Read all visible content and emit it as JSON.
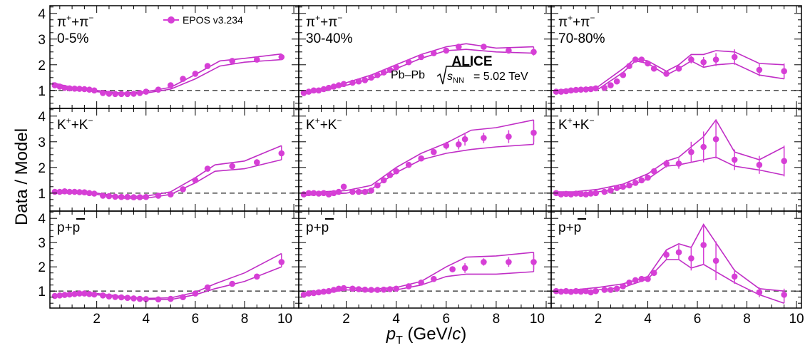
{
  "figure": {
    "ylabel": "Data / Model",
    "xlabel_main": "p",
    "xlabel_sub": "T",
    "xlabel_unit_open": " (GeV/",
    "xlabel_unit_c": "c",
    "xlabel_unit_close": ")",
    "legend_label": "EPOS v3.234",
    "experiment": "ALICE",
    "system": "Pb–Pb",
    "energy_sym": "s",
    "energy_sub": "NN",
    "energy_value": "= 5.02 TeV"
  },
  "colors": {
    "data": "#d63fd6",
    "model": "#c02ec6",
    "reference": "#555555"
  },
  "chart_data": {
    "type": "scatter",
    "grid": false,
    "xlim": [
      0.1,
      10.2
    ],
    "ylim": [
      0.3,
      4.3
    ],
    "xticks": [
      2,
      4,
      6,
      8,
      10
    ],
    "yticks": [
      1,
      2,
      3,
      4
    ],
    "reference_line": 1,
    "panels": [
      {
        "particle": [
          "π",
          "+",
          "+π",
          "−"
        ],
        "centrality": "0-5%",
        "x": [
          0.3,
          0.5,
          0.7,
          0.9,
          1.1,
          1.3,
          1.5,
          1.7,
          1.9,
          2.25,
          2.5,
          2.75,
          3.0,
          3.25,
          3.5,
          3.75,
          4.0,
          4.5,
          5.0,
          5.5,
          6.0,
          6.5,
          7.5,
          8.5,
          9.5
        ],
        "y": [
          1.2,
          1.15,
          1.1,
          1.08,
          1.07,
          1.06,
          1.05,
          1.03,
          1.0,
          0.9,
          0.87,
          0.86,
          0.86,
          0.86,
          0.87,
          0.9,
          0.95,
          1.03,
          1.2,
          1.45,
          1.65,
          1.95,
          2.15,
          2.2,
          2.3
        ],
        "err": [
          0.05,
          0.03,
          0.03,
          0.03,
          0.03,
          0.03,
          0.03,
          0.03,
          0.03,
          0.02,
          0.02,
          0.02,
          0.02,
          0.02,
          0.02,
          0.02,
          0.02,
          0.03,
          0.03,
          0.04,
          0.05,
          0.06,
          0.07,
          0.08,
          0.12
        ],
        "model_x": [
          0.2,
          1,
          2,
          3,
          4,
          5,
          6,
          7,
          8,
          9.5
        ],
        "model_lo": [
          1.15,
          1.05,
          0.95,
          0.85,
          0.9,
          1.05,
          1.45,
          1.95,
          2.1,
          2.2
        ],
        "model_hi": [
          1.3,
          1.12,
          1.0,
          0.9,
          0.95,
          1.12,
          1.62,
          2.15,
          2.25,
          2.42
        ]
      },
      {
        "particle": [
          "π",
          "+",
          "+π",
          "−"
        ],
        "centrality": "30-40%",
        "x": [
          0.3,
          0.5,
          0.7,
          0.9,
          1.1,
          1.3,
          1.5,
          1.7,
          1.9,
          2.25,
          2.5,
          2.75,
          3.0,
          3.25,
          3.5,
          3.75,
          4.0,
          4.5,
          5.0,
          5.5,
          6.0,
          6.5,
          7.5,
          8.5,
          9.5
        ],
        "y": [
          0.9,
          0.95,
          1.0,
          1.0,
          1.05,
          1.1,
          1.15,
          1.2,
          1.25,
          1.3,
          1.35,
          1.4,
          1.5,
          1.6,
          1.7,
          1.8,
          1.9,
          2.1,
          2.3,
          2.45,
          2.55,
          2.7,
          2.7,
          2.55,
          2.5
        ],
        "err": [
          0.05,
          0.05,
          0.05,
          0.05,
          0.04,
          0.04,
          0.04,
          0.04,
          0.04,
          0.04,
          0.04,
          0.04,
          0.04,
          0.04,
          0.04,
          0.04,
          0.05,
          0.05,
          0.05,
          0.06,
          0.06,
          0.07,
          0.08,
          0.1,
          0.14
        ],
        "model_x": [
          0.2,
          1,
          2,
          3,
          4,
          5,
          6,
          6.8,
          8,
          9.5
        ],
        "model_lo": [
          0.85,
          1.0,
          1.2,
          1.45,
          1.85,
          2.25,
          2.55,
          2.6,
          2.5,
          2.45
        ],
        "model_hi": [
          0.95,
          1.08,
          1.3,
          1.6,
          2.0,
          2.4,
          2.7,
          2.82,
          2.65,
          2.7
        ]
      },
      {
        "particle": [
          "π",
          "+",
          "+π",
          "−"
        ],
        "centrality": "70-80%",
        "x": [
          0.3,
          0.5,
          0.7,
          0.9,
          1.1,
          1.3,
          1.5,
          1.7,
          1.9,
          2.25,
          2.5,
          2.75,
          3.0,
          3.25,
          3.5,
          3.75,
          4.0,
          4.25,
          4.75,
          5.25,
          5.75,
          6.25,
          6.75,
          7.5,
          8.5,
          9.5
        ],
        "y": [
          0.95,
          0.95,
          0.97,
          1.0,
          1.02,
          1.03,
          1.04,
          1.05,
          1.08,
          1.1,
          1.2,
          1.35,
          1.6,
          1.95,
          2.2,
          2.2,
          2.05,
          1.85,
          1.65,
          1.85,
          2.2,
          2.1,
          2.2,
          2.3,
          1.8,
          1.75
        ],
        "err": [
          0.1,
          0.09,
          0.08,
          0.07,
          0.06,
          0.05,
          0.05,
          0.05,
          0.05,
          0.05,
          0.05,
          0.06,
          0.06,
          0.07,
          0.08,
          0.08,
          0.08,
          0.09,
          0.1,
          0.12,
          0.15,
          0.2,
          0.25,
          0.3,
          0.25,
          0.3
        ],
        "model_x": [
          0.2,
          1,
          2,
          3,
          3.5,
          4,
          4.75,
          5.25,
          5.75,
          6.25,
          6.75,
          7.5,
          8.5,
          9.5
        ],
        "model_lo": [
          0.9,
          0.95,
          1.05,
          1.7,
          2.15,
          2.05,
          1.6,
          1.85,
          2.15,
          1.9,
          2.0,
          2.05,
          1.6,
          1.45
        ],
        "model_hi": [
          1.0,
          1.05,
          1.15,
          1.85,
          2.25,
          2.15,
          1.75,
          2.0,
          2.4,
          2.4,
          2.55,
          2.5,
          2.05,
          2.0
        ]
      },
      {
        "particle": [
          "K",
          "+",
          "+K",
          "−"
        ],
        "centrality": "",
        "x": [
          0.3,
          0.5,
          0.7,
          0.9,
          1.1,
          1.3,
          1.5,
          1.7,
          1.9,
          2.25,
          2.5,
          2.75,
          3.0,
          3.25,
          3.5,
          3.75,
          4.0,
          4.5,
          5.0,
          5.5,
          6.0,
          6.5,
          7.5,
          8.5,
          9.5
        ],
        "y": [
          1.05,
          1.05,
          1.07,
          1.05,
          1.05,
          1.04,
          1.03,
          1.0,
          0.98,
          0.9,
          0.88,
          0.86,
          0.85,
          0.85,
          0.84,
          0.84,
          0.85,
          0.9,
          0.95,
          1.15,
          1.5,
          1.95,
          2.05,
          2.2,
          2.55
        ],
        "err": [
          0.04,
          0.03,
          0.03,
          0.03,
          0.03,
          0.03,
          0.03,
          0.03,
          0.03,
          0.02,
          0.02,
          0.02,
          0.02,
          0.02,
          0.02,
          0.02,
          0.03,
          0.03,
          0.04,
          0.05,
          0.07,
          0.09,
          0.1,
          0.12,
          0.2
        ],
        "model_x": [
          0.2,
          1,
          2,
          3,
          4,
          5,
          6,
          6.8,
          8,
          9.5
        ],
        "model_lo": [
          1.0,
          1.0,
          0.95,
          0.8,
          0.8,
          0.95,
          1.4,
          1.85,
          1.95,
          2.3
        ],
        "model_hi": [
          1.1,
          1.08,
          1.0,
          0.86,
          0.88,
          1.05,
          1.6,
          2.1,
          2.25,
          2.85
        ]
      },
      {
        "particle": [
          "K",
          "+",
          "+K",
          "−"
        ],
        "centrality": "",
        "x": [
          0.3,
          0.5,
          0.7,
          0.9,
          1.1,
          1.3,
          1.5,
          1.7,
          1.9,
          2.25,
          2.5,
          2.75,
          3.0,
          3.25,
          3.5,
          3.75,
          4.0,
          4.5,
          5.0,
          5.5,
          6.0,
          6.5,
          6.75,
          7.5,
          8.5,
          9.5
        ],
        "y": [
          0.95,
          1.0,
          1.0,
          0.98,
          1.0,
          0.95,
          1.0,
          1.05,
          1.25,
          1.05,
          1.05,
          1.05,
          1.1,
          1.3,
          1.5,
          1.7,
          1.85,
          2.1,
          2.35,
          2.6,
          2.85,
          2.9,
          3.1,
          3.15,
          3.2,
          3.35
        ],
        "err": [
          0.06,
          0.05,
          0.05,
          0.05,
          0.05,
          0.05,
          0.05,
          0.05,
          0.06,
          0.05,
          0.05,
          0.05,
          0.05,
          0.05,
          0.06,
          0.06,
          0.06,
          0.07,
          0.08,
          0.1,
          0.15,
          0.2,
          0.25,
          0.2,
          0.25,
          0.35
        ],
        "model_x": [
          0.2,
          1,
          2,
          3,
          4,
          5,
          6,
          7,
          8,
          9.5
        ],
        "model_lo": [
          0.9,
          0.95,
          1.0,
          1.15,
          1.8,
          2.3,
          2.55,
          2.7,
          2.8,
          2.9
        ],
        "model_hi": [
          1.0,
          1.05,
          1.1,
          1.3,
          2.0,
          2.55,
          2.95,
          3.45,
          3.55,
          3.85
        ]
      },
      {
        "particle": [
          "K",
          "+",
          "+K",
          "−"
        ],
        "centrality": "",
        "x": [
          0.3,
          0.5,
          0.7,
          0.9,
          1.1,
          1.3,
          1.5,
          1.7,
          1.9,
          2.25,
          2.5,
          2.75,
          3.0,
          3.25,
          3.5,
          3.75,
          4.0,
          4.25,
          4.75,
          5.25,
          5.75,
          6.25,
          6.75,
          7.5,
          8.5,
          9.5
        ],
        "y": [
          1.0,
          0.95,
          0.97,
          0.95,
          0.98,
          0.97,
          0.95,
          0.98,
          1.0,
          1.05,
          1.1,
          1.2,
          1.25,
          1.3,
          1.4,
          1.5,
          1.6,
          1.85,
          2.15,
          2.15,
          2.6,
          2.8,
          3.1,
          2.3,
          2.1,
          2.25
        ],
        "err": [
          0.1,
          0.09,
          0.08,
          0.07,
          0.06,
          0.05,
          0.05,
          0.05,
          0.05,
          0.05,
          0.05,
          0.06,
          0.06,
          0.07,
          0.08,
          0.08,
          0.08,
          0.1,
          0.15,
          0.2,
          0.4,
          0.6,
          0.75,
          0.4,
          0.35,
          0.6
        ],
        "model_x": [
          0.2,
          1,
          2,
          3,
          4,
          4.75,
          5.25,
          6.25,
          6.75,
          7.5,
          8.5,
          9.5
        ],
        "model_lo": [
          0.95,
          0.95,
          1.05,
          1.2,
          1.55,
          2.05,
          2.1,
          2.3,
          2.4,
          2.05,
          1.9,
          1.7
        ],
        "model_hi": [
          1.05,
          1.05,
          1.15,
          1.35,
          1.75,
          2.25,
          2.4,
          3.2,
          3.85,
          2.6,
          2.3,
          2.8
        ]
      },
      {
        "particle": [
          "p+",
          "p"
        ],
        "centrality": "",
        "x": [
          0.3,
          0.5,
          0.7,
          0.9,
          1.1,
          1.3,
          1.5,
          1.7,
          1.9,
          2.25,
          2.5,
          2.75,
          3.0,
          3.25,
          3.5,
          3.75,
          4.0,
          4.5,
          5.0,
          5.5,
          6.0,
          6.5,
          7.5,
          8.5,
          9.5
        ],
        "y": [
          0.8,
          0.82,
          0.84,
          0.86,
          0.88,
          0.9,
          0.9,
          0.88,
          0.86,
          0.82,
          0.78,
          0.76,
          0.74,
          0.72,
          0.7,
          0.68,
          0.67,
          0.66,
          0.68,
          0.75,
          0.9,
          1.15,
          1.3,
          1.6,
          2.2
        ],
        "err": [
          0.03,
          0.03,
          0.03,
          0.03,
          0.03,
          0.03,
          0.03,
          0.03,
          0.03,
          0.02,
          0.02,
          0.02,
          0.02,
          0.02,
          0.02,
          0.02,
          0.02,
          0.03,
          0.03,
          0.04,
          0.05,
          0.06,
          0.07,
          0.1,
          0.2
        ],
        "model_x": [
          0.2,
          1,
          2,
          3,
          4,
          5,
          6,
          6.8,
          8,
          9.5
        ],
        "model_lo": [
          0.75,
          0.84,
          0.85,
          0.72,
          0.65,
          0.65,
          0.85,
          1.1,
          1.4,
          2.0
        ],
        "model_hi": [
          0.82,
          0.92,
          0.9,
          0.78,
          0.7,
          0.72,
          0.95,
          1.3,
          1.75,
          2.55
        ]
      },
      {
        "particle": [
          "p+",
          "p"
        ],
        "centrality": "",
        "x": [
          0.3,
          0.5,
          0.7,
          0.9,
          1.1,
          1.3,
          1.5,
          1.7,
          1.9,
          2.25,
          2.5,
          2.75,
          3.0,
          3.25,
          3.5,
          3.75,
          4.0,
          4.5,
          5.0,
          5.5,
          6.25,
          6.75,
          7.5,
          8.5,
          9.5
        ],
        "y": [
          0.85,
          0.9,
          0.92,
          0.95,
          0.98,
          1.0,
          1.05,
          1.1,
          1.12,
          1.1,
          1.08,
          1.06,
          1.05,
          1.05,
          1.06,
          1.08,
          1.1,
          1.2,
          1.35,
          1.5,
          1.9,
          1.95,
          2.2,
          2.2,
          2.2
        ],
        "err": [
          0.05,
          0.05,
          0.04,
          0.04,
          0.04,
          0.04,
          0.04,
          0.04,
          0.04,
          0.04,
          0.04,
          0.04,
          0.04,
          0.04,
          0.04,
          0.04,
          0.04,
          0.05,
          0.06,
          0.07,
          0.12,
          0.2,
          0.15,
          0.2,
          0.3
        ],
        "model_x": [
          0.2,
          1,
          2,
          3,
          4,
          5,
          6,
          6.8,
          8,
          9.5
        ],
        "model_lo": [
          0.8,
          0.9,
          1.05,
          1.0,
          1.05,
          1.25,
          1.6,
          1.7,
          1.7,
          1.8
        ],
        "model_hi": [
          0.9,
          0.98,
          1.15,
          1.08,
          1.15,
          1.4,
          2.0,
          2.4,
          2.45,
          2.6
        ]
      },
      {
        "particle": [
          "p+",
          "p"
        ],
        "centrality": "",
        "x": [
          0.3,
          0.5,
          0.7,
          0.9,
          1.1,
          1.3,
          1.5,
          1.7,
          1.9,
          2.25,
          2.5,
          2.75,
          3.0,
          3.25,
          3.5,
          3.75,
          4.0,
          4.25,
          4.75,
          5.25,
          5.75,
          6.25,
          6.75,
          7.5,
          8.5,
          9.5
        ],
        "y": [
          1.0,
          0.98,
          1.0,
          0.97,
          1.0,
          0.98,
          1.0,
          0.95,
          1.0,
          1.05,
          1.05,
          1.1,
          1.2,
          1.35,
          1.45,
          1.5,
          1.5,
          1.75,
          2.5,
          2.6,
          2.35,
          2.9,
          2.25,
          1.6,
          0.95,
          0.85
        ],
        "err": [
          0.1,
          0.09,
          0.08,
          0.07,
          0.06,
          0.06,
          0.05,
          0.05,
          0.05,
          0.05,
          0.05,
          0.06,
          0.06,
          0.07,
          0.08,
          0.08,
          0.08,
          0.1,
          0.2,
          0.3,
          0.5,
          0.8,
          0.8,
          0.3,
          0.2,
          0.25
        ],
        "model_x": [
          0.2,
          1,
          2,
          3,
          4,
          4.75,
          5.25,
          5.75,
          6.25,
          7.5,
          8.5,
          9.5
        ],
        "model_lo": [
          0.95,
          0.95,
          1.05,
          1.15,
          1.5,
          2.3,
          2.3,
          1.95,
          2.1,
          1.35,
          0.85,
          0.5
        ],
        "model_hi": [
          1.05,
          1.05,
          1.15,
          1.3,
          1.6,
          2.7,
          2.95,
          2.8,
          3.75,
          1.85,
          1.1,
          1.0
        ]
      }
    ]
  }
}
